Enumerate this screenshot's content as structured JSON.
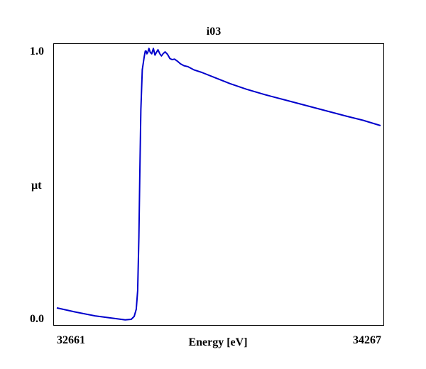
{
  "chart_data": {
    "type": "line",
    "title": "i03",
    "xlabel": "Energy [eV]",
    "ylabel": "µt",
    "xlim": [
      32661,
      34267
    ],
    "ylim": [
      0.0,
      1.0
    ],
    "x_tick_labels": [
      "32661",
      "34267"
    ],
    "y_tick_labels": [
      "0.0",
      "1.0"
    ],
    "grid": false,
    "line_color": "#0000cc",
    "series": [
      {
        "x": [
          32661,
          32750,
          32850,
          32950,
          33000,
          33030,
          33045,
          33055,
          33062,
          33068,
          33073,
          33078,
          33085,
          33095,
          33100,
          33104,
          33108,
          33112,
          33118,
          33125,
          33132,
          33140,
          33148,
          33155,
          33163,
          33172,
          33180,
          33188,
          33198,
          33210,
          33222,
          33233,
          33245,
          33258,
          33275,
          33292,
          33310,
          33340,
          33380,
          33440,
          33520,
          33600,
          33700,
          33800,
          33900,
          34000,
          34100,
          34180,
          34267
        ],
        "y": [
          0.035,
          0.02,
          0.005,
          -0.005,
          -0.01,
          -0.008,
          0.003,
          0.03,
          0.1,
          0.3,
          0.55,
          0.78,
          0.93,
          0.98,
          1.0,
          1.0,
          0.99,
          0.995,
          1.01,
          0.995,
          0.99,
          1.01,
          0.985,
          0.995,
          1.005,
          0.99,
          0.982,
          0.99,
          0.997,
          0.988,
          0.972,
          0.968,
          0.97,
          0.963,
          0.952,
          0.945,
          0.942,
          0.93,
          0.92,
          0.902,
          0.878,
          0.857,
          0.835,
          0.815,
          0.795,
          0.775,
          0.755,
          0.74,
          0.72
        ]
      }
    ]
  }
}
